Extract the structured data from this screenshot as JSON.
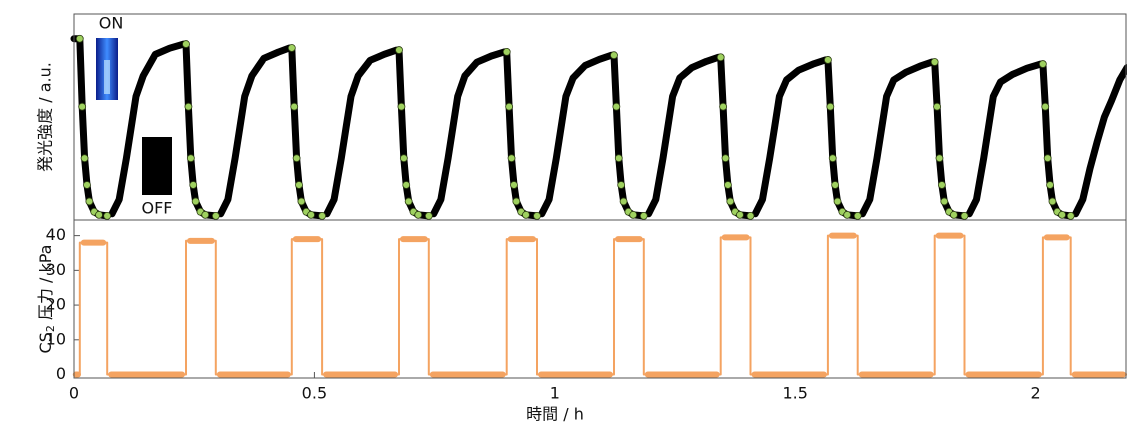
{
  "chart_data": [
    {
      "type": "line",
      "ylabel": "発光強度 / a.u.",
      "annotations": [
        "ON",
        "OFF"
      ],
      "xlim": [
        0,
        2.19
      ],
      "ylim": [
        0,
        1
      ],
      "series": [
        {
          "color": "#000000",
          "style": "line",
          "x": [
            0,
            0.008,
            null,
            0.079,
            0.094,
            0.109,
            0.119,
            0.129,
            0.144,
            0.169,
            0.199,
            0.228,
            null,
            0.305,
            0.32,
            0.335,
            0.345,
            0.355,
            0.37,
            0.395,
            0.425,
            0.448,
            null,
            0.526,
            0.541,
            0.556,
            0.566,
            0.576,
            0.591,
            0.616,
            0.646,
            0.671,
            null,
            0.748,
            0.763,
            0.778,
            0.788,
            0.798,
            0.813,
            0.838,
            0.868,
            0.895,
            null,
            0.973,
            0.988,
            1.003,
            1.013,
            1.023,
            1.038,
            1.063,
            1.093,
            1.118,
            null,
            1.195,
            1.21,
            1.225,
            1.235,
            1.245,
            1.26,
            1.285,
            1.315,
            1.34,
            null,
            1.417,
            1.432,
            1.447,
            1.457,
            1.467,
            1.482,
            1.507,
            1.537,
            1.563,
            null,
            1.64,
            1.655,
            1.67,
            1.68,
            1.69,
            1.705,
            1.73,
            1.76,
            1.785,
            null,
            1.862,
            1.877,
            1.892,
            1.902,
            1.912,
            1.927,
            1.952,
            1.982,
            2.01,
            null,
            2.083,
            2.098,
            2.113,
            2.128,
            2.143,
            2.158,
            2.175,
            2.19
          ],
          "values": [
            0.88,
            0.88,
            null,
            0.03,
            0.1,
            0.3,
            0.45,
            0.6,
            0.7,
            0.804,
            0.834,
            0.854,
            null,
            0.03,
            0.1,
            0.3,
            0.45,
            0.6,
            0.7,
            0.785,
            0.815,
            0.835,
            null,
            0.03,
            0.1,
            0.3,
            0.45,
            0.6,
            0.7,
            0.775,
            0.805,
            0.825,
            null,
            0.03,
            0.1,
            0.3,
            0.45,
            0.6,
            0.7,
            0.766,
            0.796,
            0.816,
            null,
            0.03,
            0.1,
            0.3,
            0.45,
            0.6,
            0.69,
            0.75,
            0.78,
            0.8,
            null,
            0.03,
            0.1,
            0.3,
            0.45,
            0.6,
            0.69,
            0.74,
            0.77,
            0.79,
            null,
            0.03,
            0.1,
            0.3,
            0.45,
            0.6,
            0.68,
            0.727,
            0.757,
            0.777,
            null,
            0.03,
            0.1,
            0.3,
            0.45,
            0.6,
            0.68,
            0.717,
            0.747,
            0.767,
            null,
            0.03,
            0.1,
            0.3,
            0.45,
            0.6,
            0.67,
            0.707,
            0.737,
            0.757,
            null,
            0.03,
            0.1,
            0.25,
            0.38,
            0.5,
            0.58,
            0.68,
            0.74
          ]
        },
        {
          "color": "#9fd160",
          "style": "markers",
          "x": [
            0.012,
            0.017,
            0.022,
            0.027,
            0.032,
            0.042,
            0.052,
            0.069,
            null,
            0.233,
            0.238,
            0.243,
            0.248,
            0.253,
            0.263,
            0.273,
            0.295,
            null,
            0.453,
            0.458,
            0.463,
            0.468,
            0.473,
            0.483,
            0.493,
            0.516,
            null,
            0.676,
            0.681,
            0.686,
            0.691,
            0.696,
            0.706,
            0.716,
            0.738,
            null,
            0.9,
            0.905,
            0.91,
            0.915,
            0.92,
            0.93,
            0.94,
            0.963,
            null,
            1.123,
            1.128,
            1.133,
            1.138,
            1.143,
            1.153,
            1.163,
            1.185,
            null,
            1.345,
            1.35,
            1.355,
            1.36,
            1.365,
            1.375,
            1.385,
            1.407,
            null,
            1.568,
            1.573,
            1.578,
            1.583,
            1.588,
            1.598,
            1.608,
            1.63,
            null,
            1.79,
            1.795,
            1.8,
            1.805,
            1.81,
            1.82,
            1.83,
            1.852,
            null,
            2.015,
            2.02,
            2.025,
            2.03,
            2.035,
            2.045,
            2.055,
            2.073
          ],
          "values": [
            0.88,
            0.55,
            0.3,
            0.17,
            0.09,
            0.04,
            0.025,
            0.02,
            null,
            0.854,
            0.55,
            0.3,
            0.17,
            0.09,
            0.04,
            0.025,
            0.02,
            null,
            0.835,
            0.55,
            0.3,
            0.17,
            0.09,
            0.04,
            0.025,
            0.02,
            null,
            0.825,
            0.55,
            0.3,
            0.17,
            0.09,
            0.04,
            0.025,
            0.02,
            null,
            0.816,
            0.55,
            0.3,
            0.17,
            0.09,
            0.04,
            0.025,
            0.02,
            null,
            0.8,
            0.55,
            0.3,
            0.17,
            0.09,
            0.04,
            0.025,
            0.02,
            null,
            0.79,
            0.55,
            0.3,
            0.17,
            0.09,
            0.04,
            0.025,
            0.02,
            null,
            0.777,
            0.55,
            0.3,
            0.17,
            0.09,
            0.04,
            0.025,
            0.02,
            null,
            0.767,
            0.55,
            0.3,
            0.17,
            0.09,
            0.04,
            0.025,
            0.02,
            null,
            0.757,
            0.55,
            0.3,
            0.17,
            0.09,
            0.04,
            0.025,
            0.02
          ]
        }
      ]
    },
    {
      "type": "line",
      "ylabel": {
        "main": "CS",
        "sub": "2",
        "rest": "圧力 / kPa"
      },
      "xlabel": "時間 / h",
      "xlim": [
        0,
        2.19
      ],
      "ylim": [
        -1,
        44.5
      ],
      "xticks": [
        0,
        0.5,
        1,
        1.5,
        2
      ],
      "yticks": [
        0,
        10,
        20,
        30,
        40
      ],
      "series": [
        {
          "color": "#f4a361",
          "style": "step",
          "x": [
            0,
            0.012,
            0.012,
            0.069,
            0.069,
            0.233,
            0.233,
            0.295,
            0.295,
            0.453,
            0.453,
            0.516,
            0.516,
            0.676,
            0.676,
            0.738,
            0.738,
            0.9,
            0.9,
            0.963,
            0.963,
            1.123,
            1.123,
            1.185,
            1.185,
            1.345,
            1.345,
            1.407,
            1.407,
            1.568,
            1.568,
            1.63,
            1.63,
            1.79,
            1.79,
            1.852,
            1.852,
            2.015,
            2.015,
            2.073,
            2.073,
            2.19
          ],
          "values": [
            0,
            0,
            38,
            38,
            0,
            0,
            38.5,
            38.5,
            0,
            0,
            39,
            39,
            0,
            0,
            39,
            39,
            0,
            0,
            39,
            39,
            0,
            0,
            39,
            39,
            0,
            0,
            39.5,
            39.5,
            0,
            0,
            40,
            40,
            0,
            0,
            40,
            40,
            0,
            0,
            39.5,
            39.5,
            0,
            0
          ]
        }
      ]
    }
  ]
}
